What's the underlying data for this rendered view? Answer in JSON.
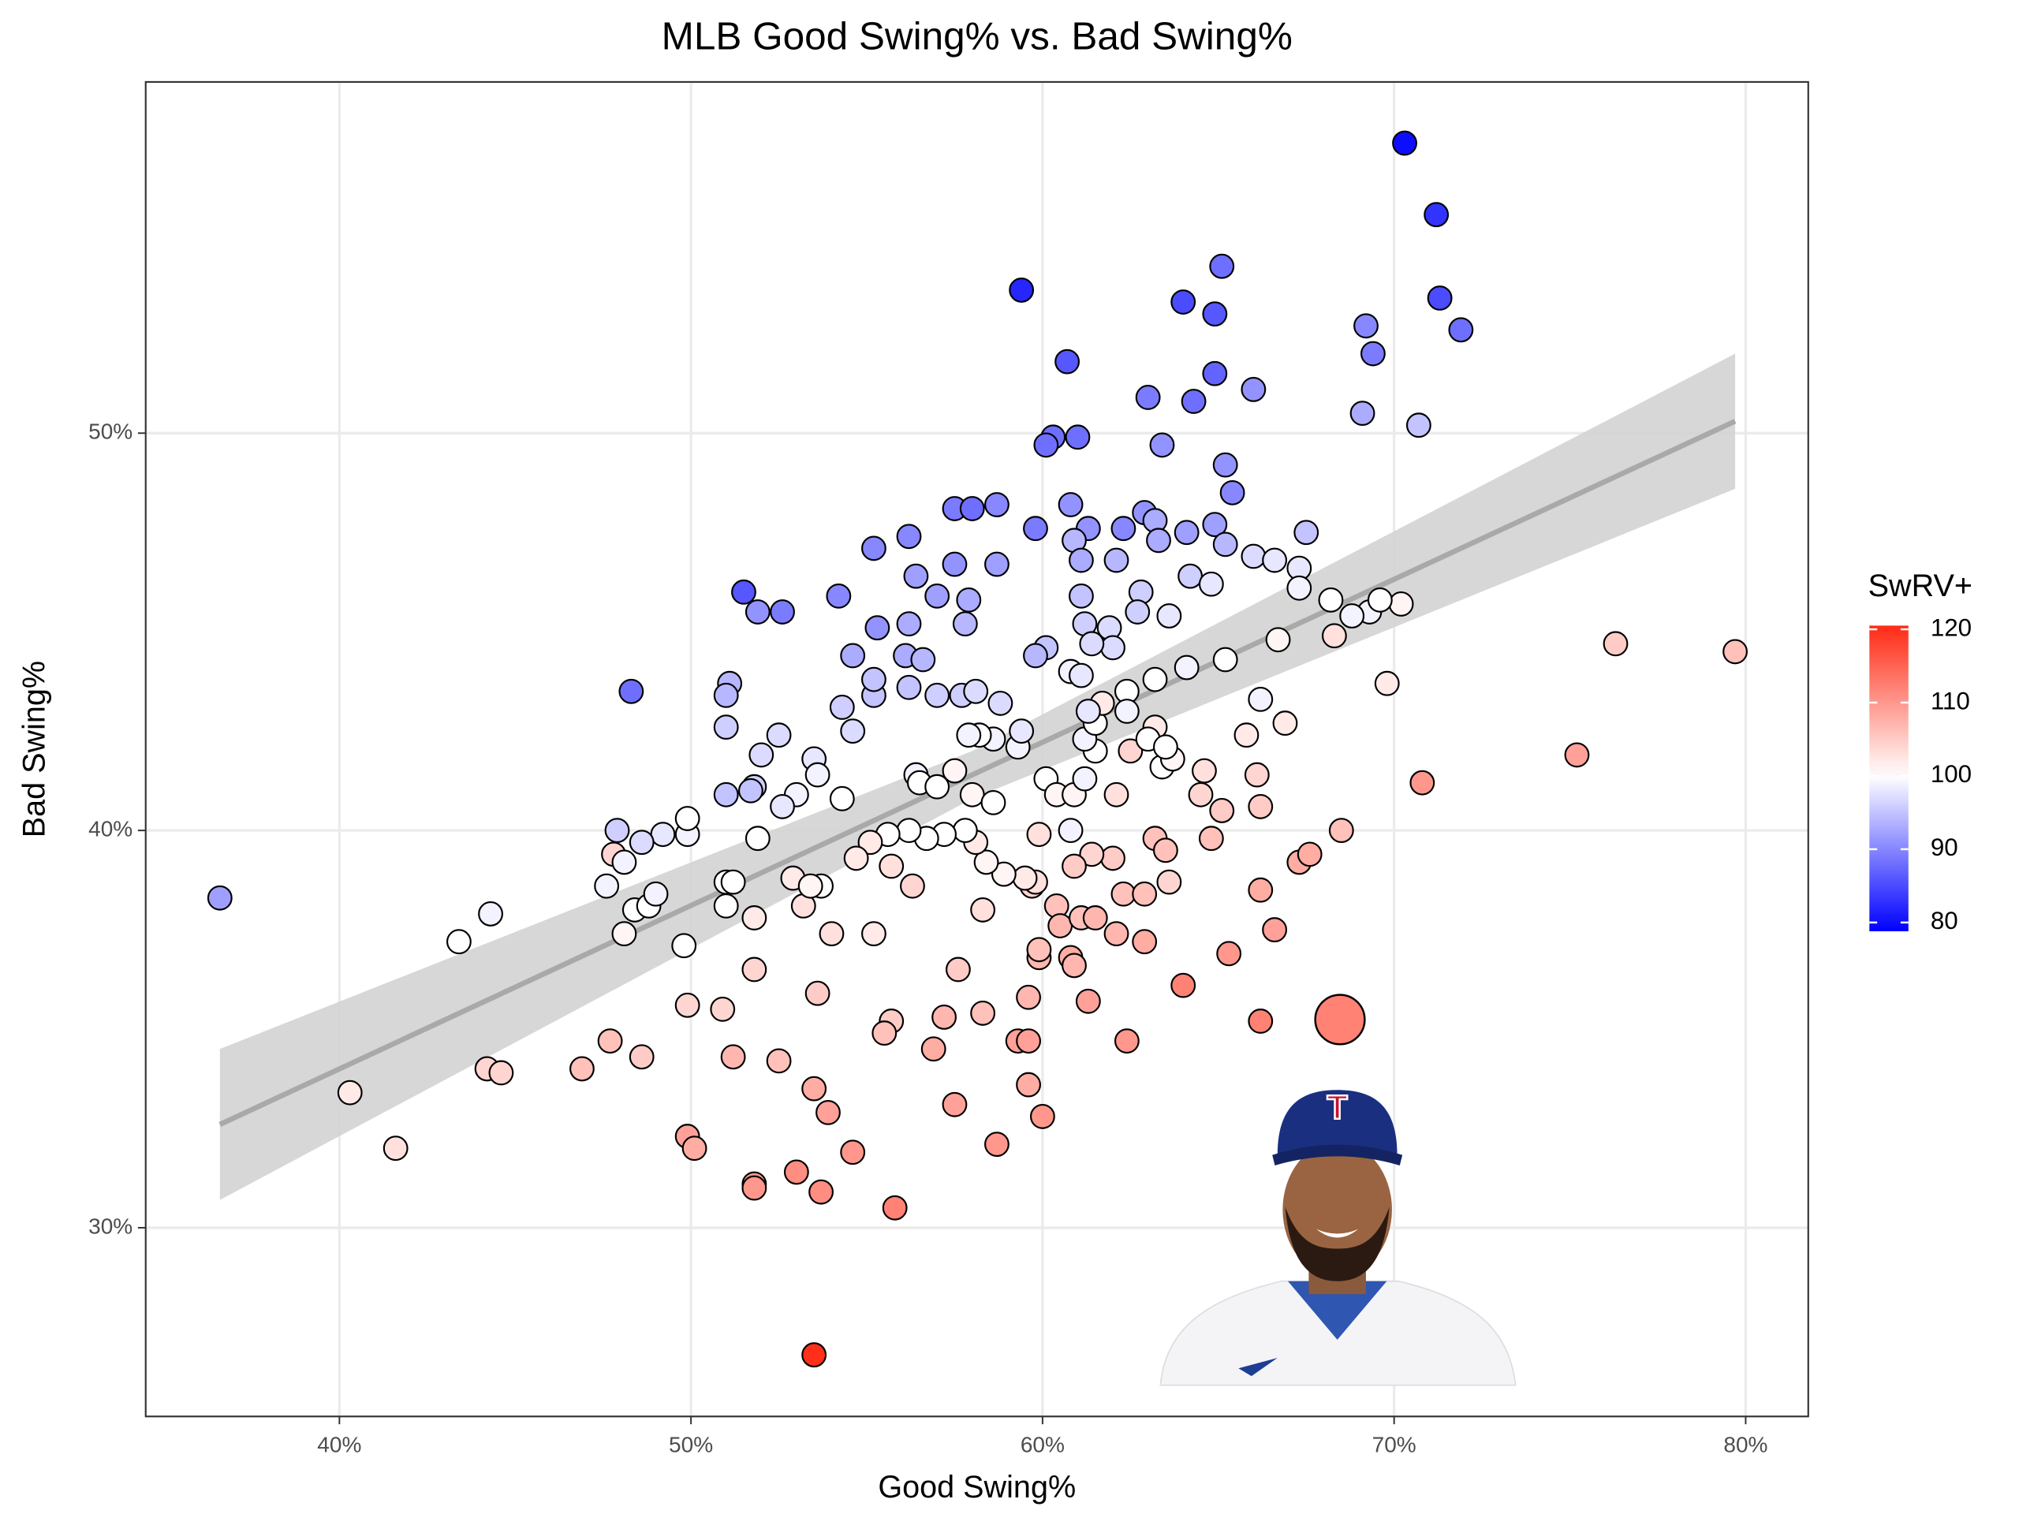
{
  "chart_data": {
    "type": "scatter",
    "title": "MLB Good Swing% vs. Bad Swing%",
    "x_label": "Good Swing%",
    "y_label": "Bad Swing%",
    "color_label": "SwRV+",
    "xlim": [
      34.49,
      81.78
    ],
    "ylim": [
      25.25,
      58.84
    ],
    "xticks": [
      {
        "value": 40,
        "label": "40%"
      },
      {
        "value": 50,
        "label": "50%"
      },
      {
        "value": 60,
        "label": "60%"
      },
      {
        "value": 70,
        "label": "70%"
      },
      {
        "value": 80,
        "label": "80%"
      }
    ],
    "yticks": [
      {
        "value": 30,
        "label": "30%"
      },
      {
        "value": 40,
        "label": "40%"
      },
      {
        "value": 50,
        "label": "50%"
      }
    ],
    "grid": true,
    "colorlim": [
      78.8,
      120.5
    ],
    "colorticks": [
      80,
      90,
      100,
      110,
      120
    ],
    "color_scale": {
      "low": "#0000ff",
      "mid": "#ffffff",
      "high": "#ff2a14",
      "midpoint": 100
    },
    "trend": {
      "x": [
        36.6,
        58,
        79.7
      ],
      "y": [
        32.6,
        41.4,
        50.3
      ],
      "lower": [
        30.7,
        40.8,
        48.6
      ],
      "upper": [
        34.5,
        42.0,
        52.0
      ],
      "color": "#a9a9a9",
      "band_color": "#d3d3d3"
    },
    "highlight": {
      "x": 68.46,
      "y": 35.24,
      "swrv": 112
    },
    "x": [
      70.3,
      71.2,
      59.4,
      65.1,
      64.0,
      64.9,
      71.3,
      69.2,
      71.9,
      69.4,
      60.7,
      64.9,
      66.0,
      63.0,
      64.3,
      69.1,
      70.7,
      60.3,
      61.0,
      60.1,
      63.4,
      65.2,
      65.4,
      57.5,
      58.0,
      58.7,
      60.8,
      62.9,
      59.8,
      61.3,
      62.3,
      63.2,
      64.1,
      64.9,
      56.2,
      55.2,
      60.9,
      63.3,
      65.2,
      67.5,
      62.1,
      61.1,
      57.5,
      58.7,
      66.0,
      66.6,
      64.2,
      64.8,
      67.3,
      67.3,
      56.4,
      51.5,
      54.2,
      52.6,
      51.9,
      57.0,
      57.9,
      61.1,
      62.8,
      63.6,
      62.7,
      68.2,
      70.2,
      69.3,
      68.8,
      69.6,
      68.3,
      56.2,
      55.3,
      57.8,
      61.2,
      61.9,
      66.7,
      60.1,
      62.0,
      61.4,
      59.8,
      56.1,
      56.6,
      54.6,
      76.3,
      79.7,
      65.2,
      64.1,
      48.3,
      51.1,
      51.0,
      55.2,
      55.2,
      56.2,
      57.0,
      57.7,
      58.1,
      58.8,
      60.8,
      61.1,
      62.4,
      63.2,
      66.2,
      69.8,
      54.3,
      54.6,
      51.0,
      52.5,
      52.0,
      51.8,
      51.0,
      51.7,
      53.5,
      53.6,
      54.3,
      53.0,
      56.4,
      56.5,
      57.0,
      57.5,
      58.0,
      58.6,
      58.2,
      57.9,
      58.6,
      59.3,
      59.4,
      60.1,
      60.4,
      60.9,
      61.2,
      61.5,
      61.2,
      61.5,
      61.7,
      61.3,
      62.4,
      62.1,
      62.5,
      63.2,
      63.0,
      63.4,
      63.7,
      63.5,
      64.6,
      64.5,
      65.1,
      65.8,
      66.9,
      66.1,
      66.2,
      70.8,
      75.2,
      68.5,
      64.8,
      63.2,
      63.5,
      62.0,
      61.4,
      60.9,
      60.8,
      59.9,
      59.7,
      59.8,
      59.5,
      58.9,
      58.4,
      58.1,
      57.8,
      57.2,
      56.7,
      56.2,
      55.6,
      55.1,
      54.7,
      55.7,
      56.3,
      53.2,
      52.9,
      53.7,
      53.4,
      51.9,
      51.0,
      51.2,
      51.0,
      51.8,
      49.9,
      49.9,
      49.2,
      48.6,
      47.9,
      47.8,
      48.1,
      47.6,
      48.4,
      48.8,
      49.0,
      48.1,
      49.8,
      44.3,
      43.4,
      36.6,
      40.3,
      41.6,
      44.2,
      44.6,
      46.9,
      47.7,
      48.6,
      49.9,
      50.9,
      49.9,
      50.1,
      51.2,
      51.8,
      52.5,
      51.8,
      51.8,
      53.0,
      53.7,
      53.5,
      53.9,
      53.6,
      54.6,
      54.0,
      55.2,
      55.7,
      55.5,
      56.9,
      57.2,
      57.6,
      57.5,
      55.8,
      58.3,
      58.3,
      58.7,
      59.3,
      59.6,
      59.6,
      59.6,
      60.0,
      59.9,
      59.9,
      60.4,
      60.5,
      61.1,
      61.5,
      60.8,
      60.9,
      61.3,
      62.1,
      62.3,
      62.9,
      62.9,
      62.4,
      63.6,
      64.0,
      65.3,
      66.2,
      66.6,
      67.3,
      67.6,
      66.2,
      53.5,
      52.6
    ],
    "y": [
      57.3,
      55.5,
      53.6,
      54.2,
      53.3,
      53.0,
      53.4,
      52.7,
      52.6,
      52.0,
      51.8,
      51.5,
      51.1,
      50.9,
      50.8,
      50.5,
      50.2,
      49.9,
      49.9,
      49.7,
      49.7,
      49.2,
      48.5,
      48.1,
      48.1,
      48.2,
      48.2,
      48.0,
      47.6,
      47.6,
      47.6,
      47.8,
      47.5,
      47.7,
      47.4,
      47.1,
      47.3,
      47.3,
      47.2,
      47.5,
      46.8,
      46.8,
      46.7,
      46.7,
      46.9,
      46.8,
      46.4,
      46.2,
      46.6,
      46.1,
      46.4,
      46.0,
      45.9,
      45.5,
      45.5,
      45.9,
      45.8,
      45.9,
      46.0,
      45.4,
      45.5,
      45.8,
      45.7,
      45.5,
      45.4,
      45.8,
      44.9,
      45.2,
      45.1,
      45.2,
      45.2,
      45.1,
      44.8,
      44.6,
      44.6,
      44.7,
      44.4,
      44.4,
      44.3,
      44.4,
      44.7,
      44.5,
      44.3,
      44.1,
      43.5,
      43.7,
      43.4,
      43.4,
      43.8,
      43.6,
      43.4,
      43.4,
      43.5,
      43.2,
      44.0,
      43.9,
      43.5,
      43.8,
      43.3,
      43.7,
      43.1,
      42.5,
      42.6,
      42.4,
      41.9,
      41.1,
      40.9,
      41.0,
      41.8,
      41.4,
      40.8,
      40.9,
      41.4,
      41.2,
      41.1,
      41.5,
      40.9,
      42.3,
      42.4,
      42.4,
      40.7,
      42.1,
      42.5,
      41.3,
      40.9,
      40.9,
      41.3,
      42.0,
      42.3,
      42.7,
      43.2,
      43.0,
      43.0,
      40.9,
      42.0,
      42.6,
      42.3,
      41.6,
      41.8,
      42.1,
      41.5,
      40.9,
      40.5,
      42.4,
      42.7,
      41.4,
      40.6,
      41.2,
      41.9,
      40.0,
      39.8,
      39.8,
      39.5,
      39.3,
      39.4,
      39.1,
      40.0,
      39.9,
      38.6,
      38.7,
      38.8,
      38.9,
      39.2,
      39.7,
      40.0,
      39.9,
      39.8,
      40.0,
      39.9,
      39.7,
      39.3,
      39.1,
      38.6,
      38.1,
      38.8,
      38.6,
      38.6,
      39.8,
      38.7,
      38.7,
      38.1,
      37.8,
      39.9,
      40.3,
      39.9,
      39.7,
      40.0,
      39.4,
      39.2,
      38.6,
      38.0,
      38.1,
      38.4,
      37.4,
      37.1,
      37.9,
      37.2,
      38.3,
      33.4,
      32.0,
      34.0,
      33.9,
      34.0,
      34.7,
      34.3,
      35.6,
      35.5,
      32.3,
      32.0,
      34.3,
      36.5,
      34.2,
      31.1,
      31.0,
      31.4,
      30.9,
      33.5,
      32.9,
      35.9,
      31.9,
      37.4,
      37.4,
      35.2,
      34.9,
      34.5,
      35.3,
      36.5,
      33.1,
      30.5,
      38.0,
      35.4,
      32.1,
      34.7,
      34.7,
      35.8,
      33.6,
      32.8,
      36.8,
      37.0,
      38.1,
      37.6,
      37.8,
      37.8,
      36.8,
      36.6,
      35.7,
      37.4,
      38.4,
      38.4,
      37.2,
      34.7,
      38.7,
      36.1,
      36.9,
      38.5,
      37.5,
      39.2,
      39.4,
      35.2,
      26.8,
      40.6
    ],
    "swrv": [
      80,
      83,
      82,
      88,
      85,
      86,
      85,
      90,
      88,
      89,
      86,
      87,
      91,
      89,
      88,
      93,
      95,
      88,
      88,
      88,
      91,
      91,
      90,
      89,
      88,
      90,
      91,
      91,
      89,
      91,
      90,
      93,
      92,
      92,
      90,
      90,
      94,
      93,
      94,
      95,
      94,
      93,
      91,
      92,
      97,
      98,
      96,
      98,
      98,
      99,
      92,
      86,
      90,
      89,
      91,
      92,
      93,
      95,
      96,
      98,
      96,
      100,
      101,
      99,
      99,
      100,
      103,
      93,
      91,
      94,
      96,
      97,
      101,
      95,
      97,
      97,
      94,
      93,
      94,
      93,
      105,
      106,
      100,
      99,
      88,
      94,
      94,
      95,
      95,
      95,
      96,
      96,
      97,
      97,
      99,
      98,
      100,
      100,
      99,
      102,
      96,
      97,
      96,
      97,
      97,
      96,
      95,
      95,
      98,
      99,
      100,
      99,
      99,
      100,
      100,
      101,
      101,
      99,
      100,
      99,
      100,
      99,
      98,
      100,
      101,
      101,
      99,
      100,
      99,
      100,
      102,
      98,
      99,
      103,
      104,
      102,
      100,
      100,
      101,
      100,
      103,
      104,
      105,
      102,
      102,
      104,
      105,
      110,
      109,
      106,
      106,
      106,
      106,
      105,
      104,
      105,
      99,
      103,
      104,
      103,
      102,
      101,
      101,
      102,
      100,
      100,
      100,
      100,
      100,
      102,
      102,
      103,
      104,
      103,
      102,
      100,
      101,
      100,
      100,
      100,
      100,
      102,
      99,
      100,
      98,
      97,
      96,
      104,
      99,
      99,
      100,
      100,
      99,
      101,
      100,
      99,
      100,
      92,
      102,
      103,
      104,
      104,
      106,
      106,
      105,
      104,
      104,
      109,
      108,
      107,
      104,
      106,
      110,
      110,
      111,
      111,
      108,
      109,
      105,
      110,
      103,
      102,
      105,
      106,
      108,
      107,
      105,
      109,
      112,
      103,
      106,
      110,
      109,
      109,
      107,
      108,
      110,
      107,
      106,
      106,
      107,
      106,
      107,
      108,
      107,
      109,
      107,
      106,
      106,
      108,
      110,
      104,
      112,
      110,
      108,
      109,
      108,
      108,
      112,
      120,
      98
    ]
  }
}
